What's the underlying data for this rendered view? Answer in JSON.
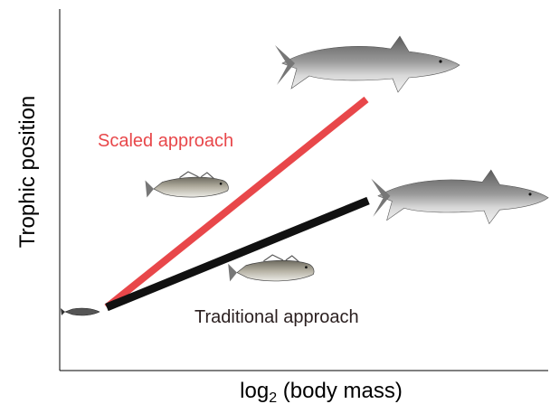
{
  "diagram": {
    "y_axis_label": "Trophic position",
    "x_axis_label": {
      "main": "log",
      "subscript": "2",
      "rest": " (body mass)"
    },
    "lines": [
      {
        "label": "Scaled approach"
      },
      {
        "label": "Traditional approach"
      }
    ]
  }
}
